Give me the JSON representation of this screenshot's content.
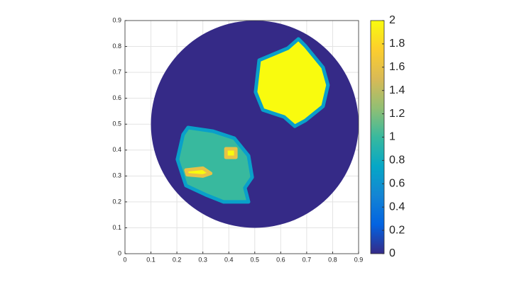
{
  "chart_data": {
    "type": "image",
    "xlim": [
      0,
      0.9
    ],
    "ylim": [
      0,
      0.9
    ],
    "xticks": [
      0,
      0.1,
      0.2,
      0.3,
      0.4,
      0.5,
      0.6,
      0.7,
      0.8,
      0.9
    ],
    "yticks": [
      0,
      0.1,
      0.2,
      0.3,
      0.4,
      0.5,
      0.6,
      0.7,
      0.8,
      0.9
    ],
    "grid": true,
    "clim": [
      0,
      2
    ],
    "cticks": [
      0,
      0.2,
      0.4,
      0.6,
      0.8,
      1,
      1.2,
      1.4,
      1.6,
      1.8,
      2
    ],
    "colormap": [
      "#352a87",
      "#0363e1",
      "#1485d4",
      "#06a7c6",
      "#38b99e",
      "#92bf73",
      "#d9ba56",
      "#fcce2e",
      "#f9fb0e"
    ],
    "disc": {
      "center": [
        0.5,
        0.5
      ],
      "radius": 0.4,
      "value": 0
    },
    "regions": [
      {
        "value": 2,
        "edge_value": 0.7,
        "points": [
          [
            0.517,
            0.747
          ],
          [
            0.627,
            0.793
          ],
          [
            0.668,
            0.829
          ],
          [
            0.695,
            0.802
          ],
          [
            0.763,
            0.719
          ],
          [
            0.782,
            0.651
          ],
          [
            0.763,
            0.569
          ],
          [
            0.695,
            0.514
          ],
          [
            0.654,
            0.492
          ],
          [
            0.613,
            0.528
          ],
          [
            0.531,
            0.555
          ],
          [
            0.503,
            0.624
          ]
        ]
      },
      {
        "value": 1,
        "edge_value": 0.7,
        "points": [
          [
            0.243,
            0.487
          ],
          [
            0.339,
            0.473
          ],
          [
            0.421,
            0.446
          ],
          [
            0.476,
            0.378
          ],
          [
            0.49,
            0.295
          ],
          [
            0.462,
            0.254
          ],
          [
            0.476,
            0.2
          ],
          [
            0.38,
            0.2
          ],
          [
            0.312,
            0.227
          ],
          [
            0.235,
            0.263
          ],
          [
            0.202,
            0.364
          ],
          [
            0.224,
            0.46
          ]
        ]
      },
      {
        "value": 2,
        "edge_value": 1.6,
        "points": [
          [
            0.389,
            0.405
          ],
          [
            0.427,
            0.405
          ],
          [
            0.427,
            0.372
          ],
          [
            0.389,
            0.372
          ]
        ]
      },
      {
        "value": 2,
        "edge_value": 1.6,
        "points": [
          [
            0.235,
            0.323
          ],
          [
            0.3,
            0.33
          ],
          [
            0.33,
            0.31
          ],
          [
            0.3,
            0.3
          ],
          [
            0.24,
            0.305
          ]
        ]
      }
    ]
  }
}
